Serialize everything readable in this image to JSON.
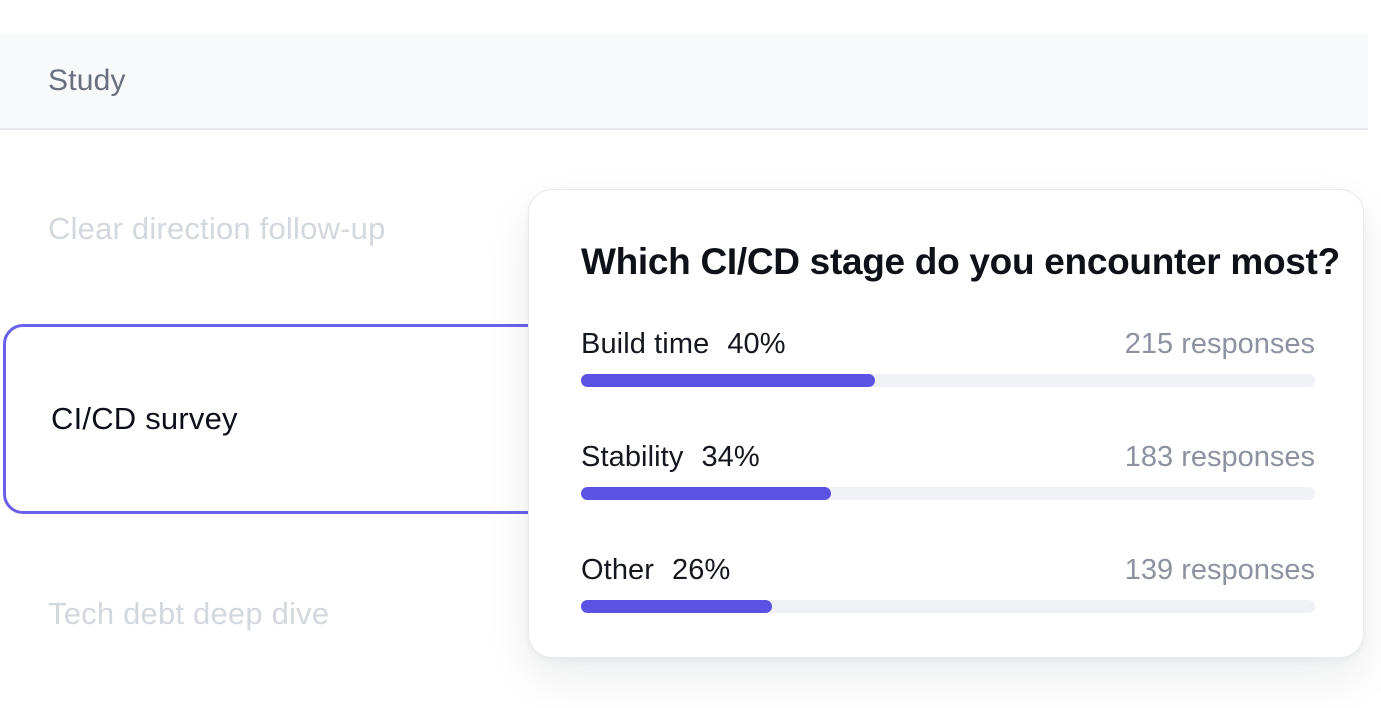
{
  "header": {
    "title": "Study"
  },
  "sidebar": {
    "items": [
      {
        "label": "Clear direction follow-up",
        "state": "dimmed"
      },
      {
        "label": "CI/CD survey",
        "state": "selected"
      },
      {
        "label": "Tech debt deep dive",
        "state": "dimmed"
      }
    ]
  },
  "card": {
    "title": "Which CI/CD stage do you encounter most?",
    "rows": [
      {
        "label": "Build time",
        "percent": "40%",
        "percent_value": 40,
        "responses": "215 responses"
      },
      {
        "label": "Stability",
        "percent": "34%",
        "percent_value": 34,
        "responses": "183 responses"
      },
      {
        "label": "Other",
        "percent": "26%",
        "percent_value": 26,
        "responses": "139 responses"
      }
    ]
  },
  "colors": {
    "accent": "#5b51e3",
    "selected_border": "#6c5fec",
    "track": "#f0f1f4",
    "muted_text": "#8c929f",
    "dim_text": "#d3d7de"
  },
  "chart_data": {
    "type": "bar",
    "orientation": "horizontal",
    "title": "Which CI/CD stage do you encounter most?",
    "categories": [
      "Build time",
      "Stability",
      "Other"
    ],
    "values": [
      40,
      34,
      26
    ],
    "value_unit": "percent",
    "responses": [
      215,
      183,
      139
    ],
    "xlabel": "",
    "ylabel": "",
    "xlim": [
      0,
      100
    ],
    "legend": false,
    "grid": false
  }
}
